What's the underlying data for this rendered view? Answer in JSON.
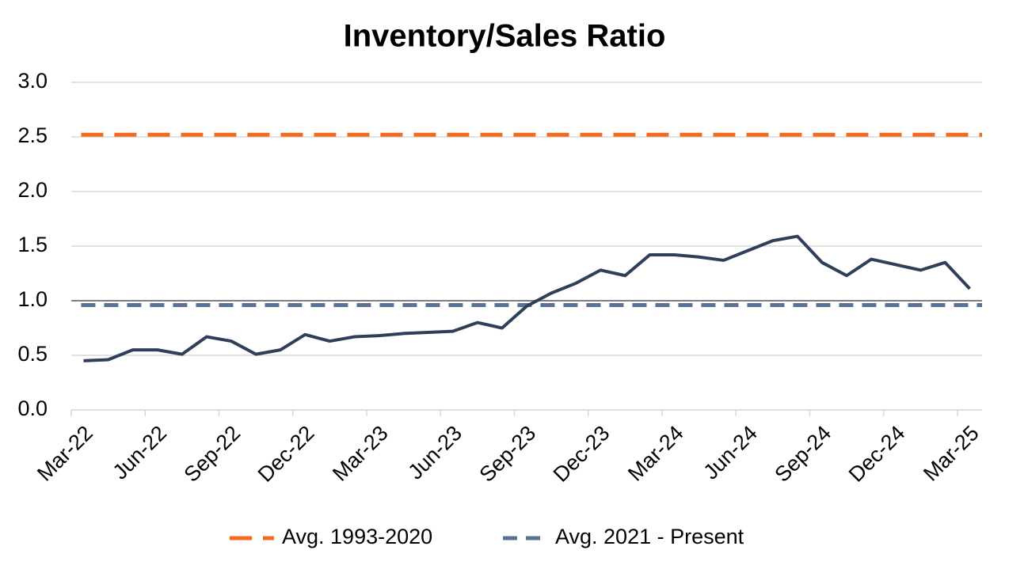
{
  "chart_data": {
    "type": "line",
    "title": "Inventory/Sales Ratio",
    "categories": [
      "Mar-22",
      null,
      null,
      "Jun-22",
      null,
      null,
      "Sep-22",
      null,
      null,
      "Dec-22",
      null,
      null,
      "Mar-23",
      null,
      null,
      "Jun-23",
      null,
      null,
      "Sep-23",
      null,
      null,
      "Dec-23",
      null,
      null,
      "Mar-24",
      null,
      null,
      "Jun-24",
      null,
      null,
      "Sep-24",
      null,
      null,
      "Dec-24",
      null,
      null,
      "Mar-25"
    ],
    "values": [
      0.45,
      0.46,
      0.55,
      0.55,
      0.51,
      0.67,
      0.63,
      0.51,
      0.55,
      0.69,
      0.63,
      0.67,
      0.68,
      0.7,
      0.71,
      0.72,
      0.8,
      0.75,
      0.95,
      1.07,
      1.16,
      1.28,
      1.23,
      1.42,
      1.42,
      1.4,
      1.37,
      1.46,
      1.55,
      1.59,
      1.35,
      1.23,
      1.38,
      1.33,
      1.28,
      1.35,
      1.11
    ],
    "color": "#2e4057",
    "reference_series": [
      {
        "name": "Avg. 1993-2020",
        "color": "#f26b21",
        "value": 2.52
      },
      {
        "name": "Avg. 2021 - Present",
        "color": "#5a7296",
        "value": 0.96
      }
    ],
    "hline": 1.0,
    "ylim": [
      0,
      3
    ],
    "yticks": [
      {
        "value": 0,
        "label": "0.0"
      },
      0.5,
      {
        "value": 1,
        "label": "1.0"
      },
      1.5,
      {
        "value": 2,
        "label": "2.0"
      },
      2.5,
      {
        "value": 3,
        "label": "3.0"
      }
    ],
    "grid": true,
    "legend": "bottom"
  }
}
